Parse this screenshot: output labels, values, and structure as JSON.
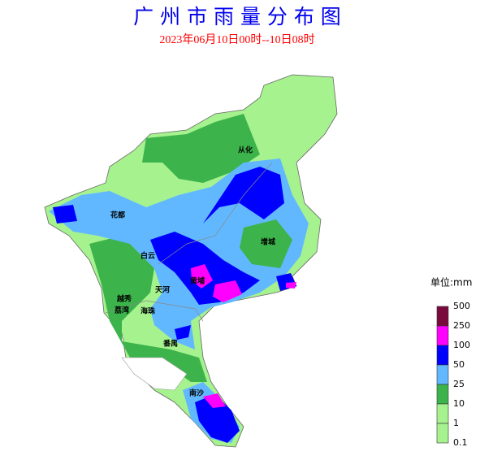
{
  "header": {
    "title": "广 州 市 雨 量 分 布 图",
    "subtitle": "2023年06月10日00时--10日08时"
  },
  "districts": [
    {
      "label": "从化"
    },
    {
      "label": "花都"
    },
    {
      "label": "增城"
    },
    {
      "label": "白云"
    },
    {
      "label": "黄埔"
    },
    {
      "label": "天河"
    },
    {
      "label": "越秀"
    },
    {
      "label": "荔湾"
    },
    {
      "label": "海珠"
    },
    {
      "label": "番禺"
    },
    {
      "label": "南沙"
    }
  ],
  "legend": {
    "unit": "单位:mm",
    "levels": [
      "500",
      "250",
      "100",
      "50",
      "25",
      "10",
      "1",
      "0.1"
    ],
    "colors": [
      "#7a0a3c",
      "#ff00ff",
      "#0000ff",
      "#61b8ff",
      "#3cb44b",
      "#a6f28f",
      "#a6f28f"
    ]
  }
}
